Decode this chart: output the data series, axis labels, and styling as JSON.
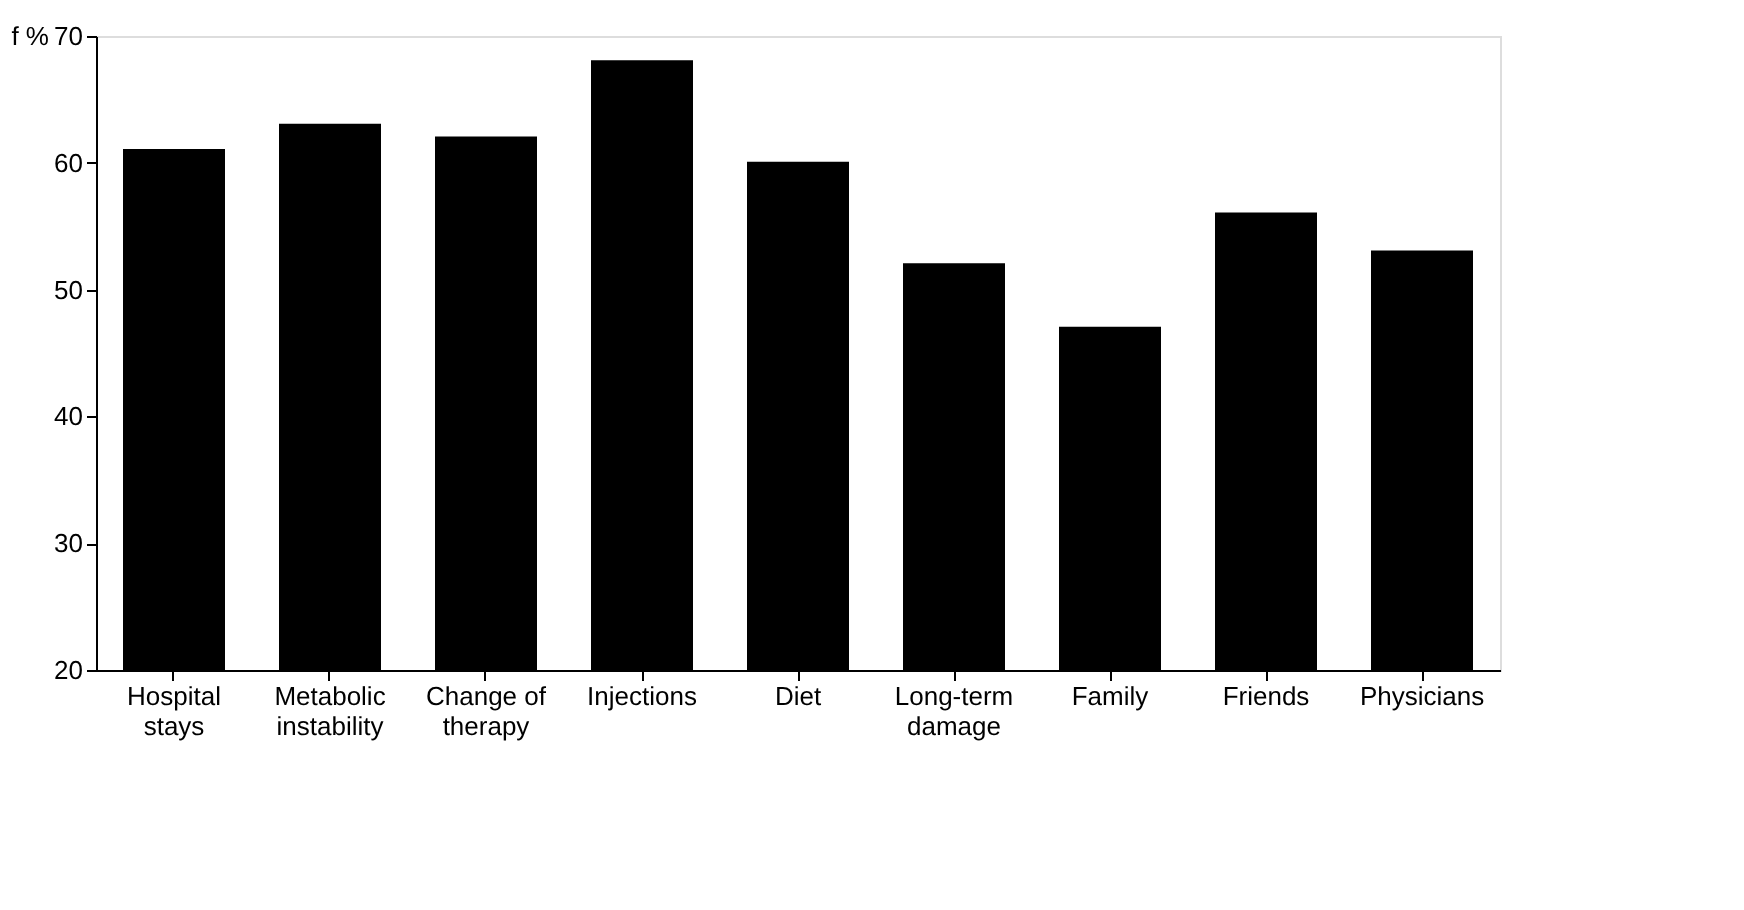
{
  "chart_data": {
    "type": "bar",
    "ylabel": "f %",
    "categories": [
      "Hospital\nstays",
      "Metabolic\ninstability",
      "Change of\ntherapy",
      "Injections",
      "Diet",
      "Long-term\ndamage",
      "Family",
      "Friends",
      "Physicians"
    ],
    "values": [
      61,
      63,
      62,
      68,
      60,
      52,
      47,
      56,
      53
    ],
    "color": "#000000",
    "ylim": [
      20,
      70
    ],
    "yticks": [
      20,
      30,
      40,
      50,
      60,
      70
    ],
    "grid": false
  }
}
